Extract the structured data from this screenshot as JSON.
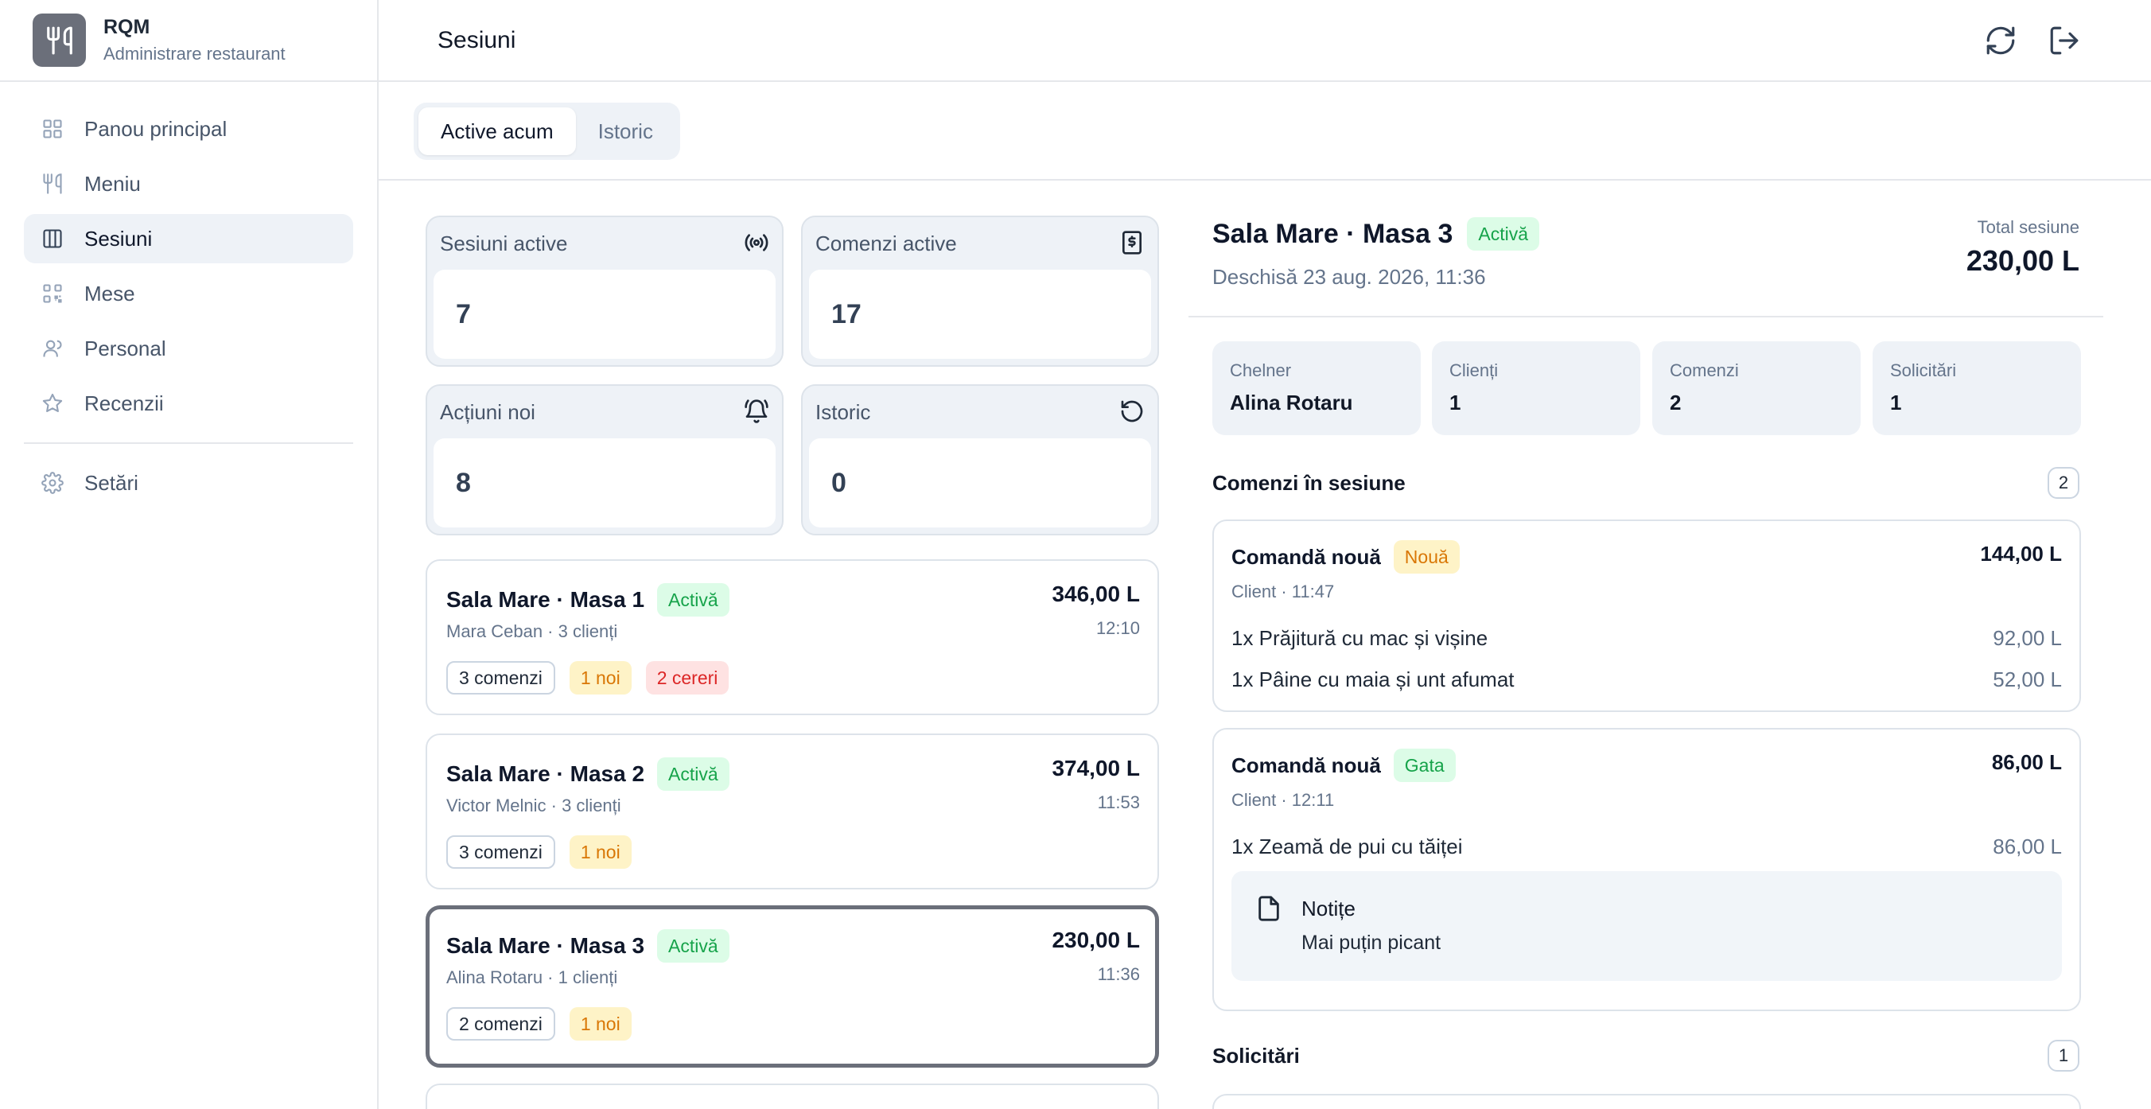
{
  "brand": {
    "title": "RQM",
    "subtitle": "Administrare restaurant"
  },
  "nav": {
    "items": [
      {
        "label": "Panou principal",
        "icon": "grid-icon"
      },
      {
        "label": "Meniu",
        "icon": "utensils-icon"
      },
      {
        "label": "Sesiuni",
        "icon": "columns-icon",
        "active": true
      },
      {
        "label": "Mese",
        "icon": "qr-code-icon"
      },
      {
        "label": "Personal",
        "icon": "user-icon"
      },
      {
        "label": "Recenzii",
        "icon": "star-icon"
      }
    ],
    "settings": {
      "label": "Setări",
      "icon": "gear-icon"
    }
  },
  "header": {
    "title": "Sesiuni",
    "actions": [
      "refresh-icon",
      "logout-icon"
    ]
  },
  "tabs": [
    {
      "label": "Active acum",
      "active": true
    },
    {
      "label": "Istoric",
      "active": false
    }
  ],
  "stats": [
    {
      "label": "Sesiuni active",
      "value": "7",
      "icon": "broadcast-icon"
    },
    {
      "label": "Comenzi active",
      "value": "17",
      "icon": "receipt-dollar-icon"
    },
    {
      "label": "Acțiuni noi",
      "value": "8",
      "icon": "bell-ring-icon"
    },
    {
      "label": "Istoric",
      "value": "0",
      "icon": "history-icon"
    }
  ],
  "sessions": [
    {
      "title": "Sala Mare · Masa 1",
      "status": "Activă",
      "sub": "Mara Ceban · 3 clienți",
      "amount": "346,00 L",
      "time": "12:10",
      "orders": "3 comenzi",
      "new": "1 noi",
      "requests": "2 cereri"
    },
    {
      "title": "Sala Mare · Masa 2",
      "status": "Activă",
      "sub": "Victor Melnic · 3 clienți",
      "amount": "374,00 L",
      "time": "11:53",
      "orders": "3 comenzi",
      "new": "1 noi"
    },
    {
      "title": "Sala Mare · Masa 3",
      "status": "Activă",
      "sub": "Alina Rotaru · 1 clienți",
      "amount": "230,00 L",
      "time": "11:36",
      "orders": "2 comenzi",
      "new": "1 noi",
      "selected": true
    }
  ],
  "detail": {
    "title": "Sala Mare · Masa 3",
    "status": "Activă",
    "opened": "Deschisă 23 aug. 2026, 11:36",
    "total_label": "Total sesiune",
    "total": "230,00 L",
    "info": [
      {
        "label": "Chelner",
        "value": "Alina Rotaru"
      },
      {
        "label": "Clienți",
        "value": "1"
      },
      {
        "label": "Comenzi",
        "value": "2"
      },
      {
        "label": "Solicitări",
        "value": "1"
      }
    ],
    "orders_title": "Comenzi în sesiune",
    "orders_count": "2",
    "orders": [
      {
        "title": "Comandă nouă",
        "status": "Nouă",
        "amount": "144,00 L",
        "meta": "Client · 11:47",
        "lines": [
          {
            "item": "1x Prăjitură cu mac și vișine",
            "price": "92,00 L"
          },
          {
            "item": "1x Pâine cu maia și unt afumat",
            "price": "52,00 L"
          }
        ]
      },
      {
        "title": "Comandă nouă",
        "status": "Gata",
        "amount": "86,00 L",
        "meta": "Client · 12:11",
        "lines": [
          {
            "item": "1x Zeamă de pui cu tăiței",
            "price": "86,00 L"
          }
        ],
        "note": {
          "title": "Notițe",
          "text": "Mai puțin picant"
        }
      }
    ],
    "requests_title": "Solicitări",
    "requests_count": "1"
  },
  "colors": {
    "accent_green": "#16a34a",
    "accent_yellow": "#d97706",
    "accent_red": "#dc2626",
    "selected_border": "#6b6f7a"
  }
}
